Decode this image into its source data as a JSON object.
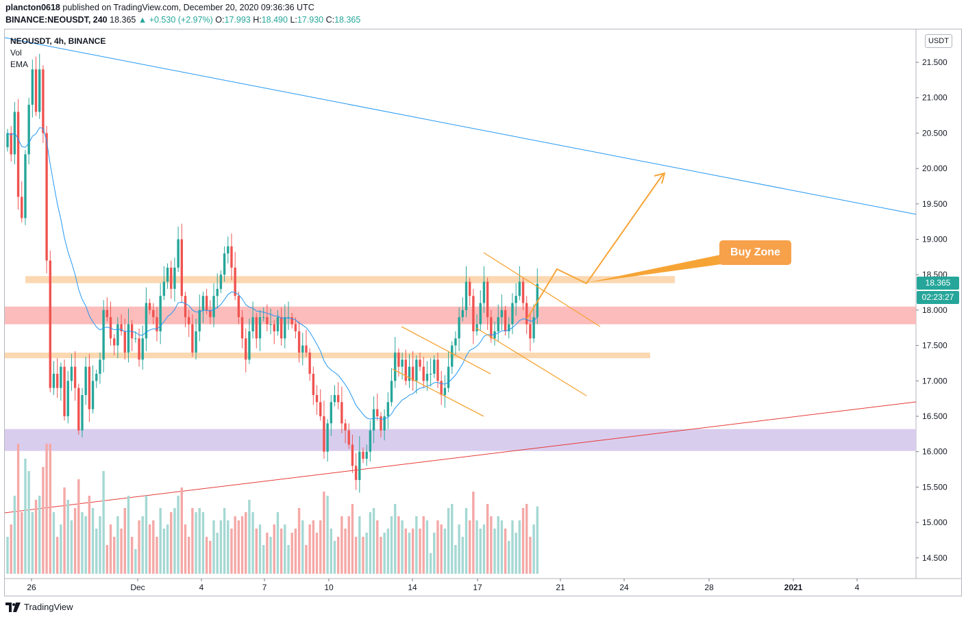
{
  "header": {
    "author": "plancton0618",
    "published_text": "published on TradingView.com, December 20, 2020 09:36:36 UTC",
    "symbol_line": "BINANCE:NEOUSDT, 240",
    "last": "18.365",
    "change": "▲ +0.530 (+2.97%)",
    "o_label": "O:",
    "o_val": "17.993",
    "h_label": "H:",
    "h_val": "18.490",
    "l_label": "L:",
    "l_val": "17.930",
    "c_label": "C:",
    "c_val": "18.365"
  },
  "legend": {
    "pair": "NEOUSDT, 4h, BINANCE",
    "vol": "Vol",
    "ema": "EMA"
  },
  "currency": "USDT",
  "price_tag": "18.365",
  "countdown": "02:23:27",
  "annotation": "Buy Zone",
  "footer": {
    "brand": "TradingView"
  },
  "colors": {
    "up": "#26a69a",
    "down": "#ef5350",
    "ema": "#2196f3",
    "trend_red": "#e53935",
    "orange": "#f7a14b"
  },
  "chart_data": {
    "type": "candlestick",
    "ylim": [
      14.25,
      21.85
    ],
    "y_ticks": [
      "21.500",
      "21.000",
      "20.500",
      "20.000",
      "19.500",
      "19.000",
      "18.500",
      "18.000",
      "17.500",
      "17.000",
      "16.500",
      "16.000",
      "15.500",
      "15.000",
      "14.500"
    ],
    "x_labels": [
      "26",
      "Dec",
      "4",
      "7",
      "10",
      "14",
      "17",
      "21",
      "24",
      "28",
      "2021",
      "4"
    ],
    "ohlc_closes": [
      20.5,
      20.2,
      20.8,
      19.6,
      19.3,
      20.2,
      20.9,
      21.4,
      20.8,
      21.4,
      20.5,
      18.7,
      16.9,
      17.1,
      16.9,
      17.2,
      16.5,
      17.0,
      17.2,
      16.9,
      16.3,
      16.8,
      17.2,
      16.6,
      17.0,
      17.1,
      17.3,
      18.0,
      17.9,
      17.6,
      17.5,
      17.8,
      17.7,
      17.4,
      17.8,
      17.6,
      17.6,
      17.3,
      17.6,
      18.1,
      18.0,
      17.9,
      17.7,
      18.2,
      18.4,
      18.6,
      18.3,
      18.6,
      19.0,
      18.2,
      17.9,
      17.8,
      17.4,
      17.7,
      18.0,
      18.2,
      18.0,
      17.9,
      18.2,
      18.3,
      18.5,
      18.8,
      18.9,
      18.6,
      18.2,
      17.9,
      17.6,
      17.3,
      17.7,
      17.9,
      17.6,
      17.9,
      17.9,
      17.8,
      17.8,
      17.7,
      17.9,
      17.6,
      17.9,
      17.9,
      17.8,
      17.7,
      17.4,
      17.5,
      17.4,
      17.1,
      16.8,
      16.7,
      16.5,
      16.0,
      16.4,
      16.7,
      16.8,
      16.7,
      16.4,
      16.3,
      16.1,
      15.8,
      15.6,
      16.0,
      15.9,
      16.0,
      16.3,
      16.6,
      16.5,
      16.3,
      16.5,
      16.7,
      17.0,
      17.4,
      17.2,
      17.3,
      17.0,
      17.2,
      17.0,
      17.3,
      17.2,
      17.0,
      17.1,
      17.1,
      17.3,
      17.0,
      16.8,
      16.9,
      17.2,
      17.5,
      17.6,
      17.9,
      18.0,
      18.4,
      18.2,
      17.7,
      17.8,
      18.1,
      18.4,
      17.9,
      17.6,
      17.7,
      17.9,
      18.0,
      17.7,
      17.8,
      18.1,
      18.2,
      18.4,
      18.1,
      17.8,
      17.6,
      17.9,
      18.37
    ],
    "zones": [
      {
        "name": "orange-zone-upper",
        "from": 18.38,
        "to": 18.48
      },
      {
        "name": "red-zone",
        "from": 17.8,
        "to": 18.05
      },
      {
        "name": "orange-zone-lower",
        "from": 17.32,
        "to": 17.4
      },
      {
        "name": "purple-zone",
        "from": 16.01,
        "to": 16.32
      }
    ]
  }
}
